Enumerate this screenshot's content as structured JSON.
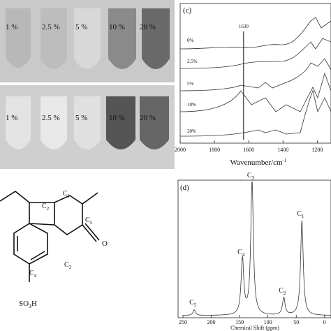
{
  "photo": {
    "row1": [
      "1 %",
      "2.5 %",
      "5 %",
      "10 %",
      "20 %"
    ],
    "row2": [
      "1 %",
      "2.5 %",
      "5 %",
      "10 %",
      "20 %"
    ]
  },
  "ftir": {
    "panel": "(c)",
    "xlabel": "Wavenumber/cm",
    "xlabel_sup": "-1",
    "xlim": [
      2000,
      1120
    ],
    "xticks": [
      2000,
      1800,
      1600,
      1400,
      1200
    ],
    "marker": {
      "value": 1630,
      "label": "1630"
    },
    "curves": [
      "0%",
      "2.5%",
      "5%",
      "10%",
      "20%"
    ]
  },
  "structure": {
    "atoms": [
      {
        "element": "C",
        "index": "1"
      },
      {
        "element": "C",
        "index": "2"
      },
      {
        "element": "C",
        "index": "3"
      },
      {
        "element": "C",
        "index": "4"
      },
      {
        "element": "C",
        "index": "5"
      }
    ],
    "oxygen": "O",
    "sulfonate": "SO",
    "sulfonate_sub": "3",
    "sulfonate_h": "H"
  },
  "nmr": {
    "panel": "(d)",
    "xlabel": "Chemical Shift (ppm)",
    "xlim": [
      250,
      -20
    ],
    "xticks": [
      250,
      200,
      150,
      100,
      50,
      0
    ],
    "peaks": [
      {
        "element": "C",
        "index": "5",
        "ppm": 230,
        "height": 8
      },
      {
        "element": "C",
        "index": "4",
        "ppm": 145,
        "height": 80
      },
      {
        "element": "C",
        "index": "3",
        "ppm": 128,
        "height": 190
      },
      {
        "element": "C",
        "index": "2",
        "ppm": 72,
        "height": 25
      },
      {
        "element": "C",
        "index": "1",
        "ppm": 40,
        "height": 135
      }
    ]
  }
}
